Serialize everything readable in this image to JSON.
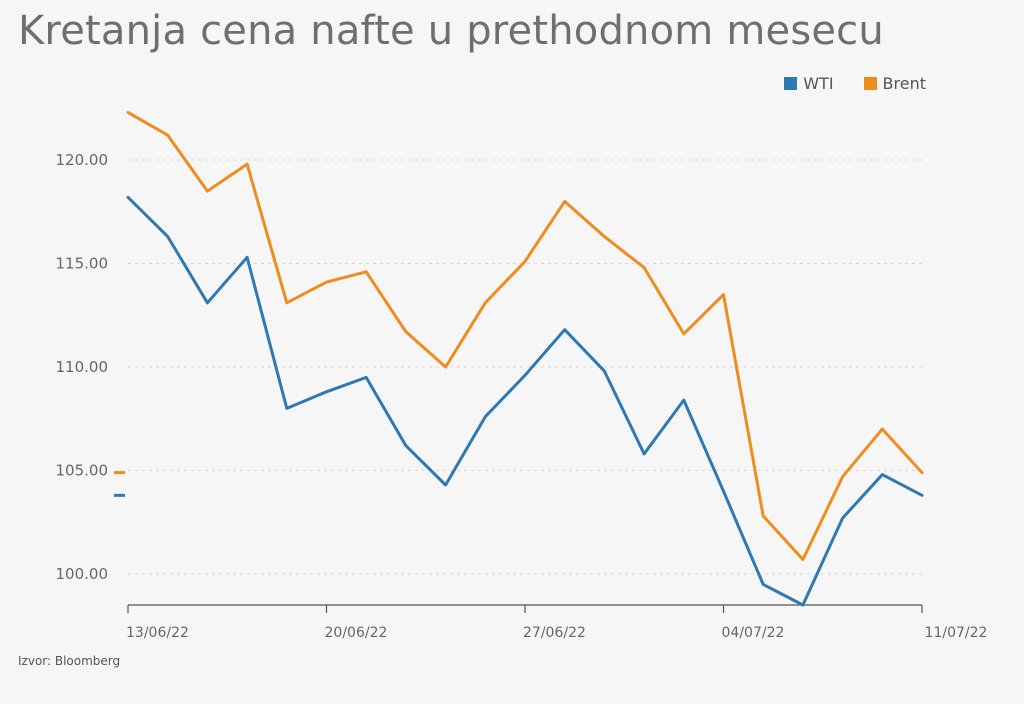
{
  "header": {
    "title": "Kretanja cena nafte u prethodnom mesecu"
  },
  "footer": {
    "source": "Izvor: Bloomberg"
  },
  "chart_data": {
    "type": "line",
    "title": "Kretanja cena nafte u prethodnom mesecu",
    "xlabel": "",
    "ylabel": "",
    "ylim": [
      98.5,
      122.5
    ],
    "y_ticks": [
      "100.00",
      "105.00",
      "110.00",
      "115.00",
      "120.00"
    ],
    "y_tick_values": [
      100,
      105,
      110,
      115,
      120
    ],
    "x_tick_labels": [
      "13/06/22",
      "20/06/22",
      "27/06/22",
      "04/07/22",
      "11/07/22"
    ],
    "grid": true,
    "legend": "top-right",
    "last_value_markers": true,
    "x": [
      "13/06/22",
      "14/06/22",
      "15/06/22",
      "16/06/22",
      "17/06/22",
      "20/06/22",
      "21/06/22",
      "22/06/22",
      "23/06/22",
      "24/06/22",
      "27/06/22",
      "28/06/22",
      "29/06/22",
      "30/06/22",
      "01/07/22",
      "04/07/22",
      "05/07/22",
      "06/07/22",
      "07/07/22",
      "08/07/22",
      "11/07/22"
    ],
    "series": [
      {
        "name": "WTI",
        "color": "#2e78b4",
        "values": [
          118.2,
          116.3,
          113.1,
          115.3,
          108.0,
          108.8,
          109.5,
          106.2,
          104.3,
          107.6,
          109.6,
          111.8,
          109.8,
          105.8,
          108.4,
          104.0,
          99.5,
          98.5,
          102.7,
          104.8,
          103.8
        ]
      },
      {
        "name": "Brent",
        "color": "#f08c1e",
        "values": [
          122.3,
          121.2,
          118.5,
          119.8,
          113.1,
          114.1,
          114.6,
          111.7,
          110.0,
          113.1,
          115.1,
          118.0,
          116.3,
          114.8,
          111.6,
          113.5,
          102.8,
          100.7,
          104.7,
          107.0,
          104.9
        ]
      }
    ]
  }
}
